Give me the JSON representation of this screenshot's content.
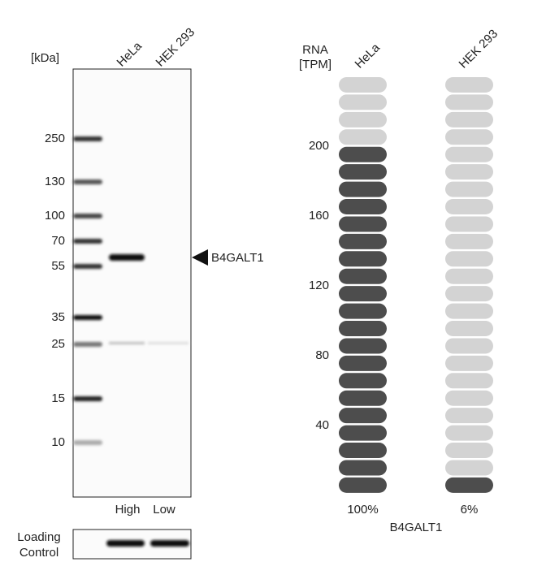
{
  "western_blot": {
    "unit_label": "[kDa]",
    "lanes": [
      "HeLa",
      "HEK 293"
    ],
    "markers": [
      "250",
      "130",
      "100",
      "70",
      "55",
      "35",
      "25",
      "15",
      "10"
    ],
    "target": "B4GALT1",
    "expression": [
      "High",
      "Low"
    ],
    "loading_control": [
      "Loading",
      "Control"
    ]
  },
  "rna": {
    "axis_label": [
      "RNA",
      "[TPM]"
    ],
    "ticks": [
      "200",
      "160",
      "120",
      "80",
      "40"
    ],
    "pill_count": 24,
    "columns": [
      {
        "label": "HeLa",
        "filled": 20,
        "percent": "100%"
      },
      {
        "label": "HEK 293",
        "filled": 1,
        "percent": "6%"
      }
    ],
    "gene": "B4GALT1"
  }
}
